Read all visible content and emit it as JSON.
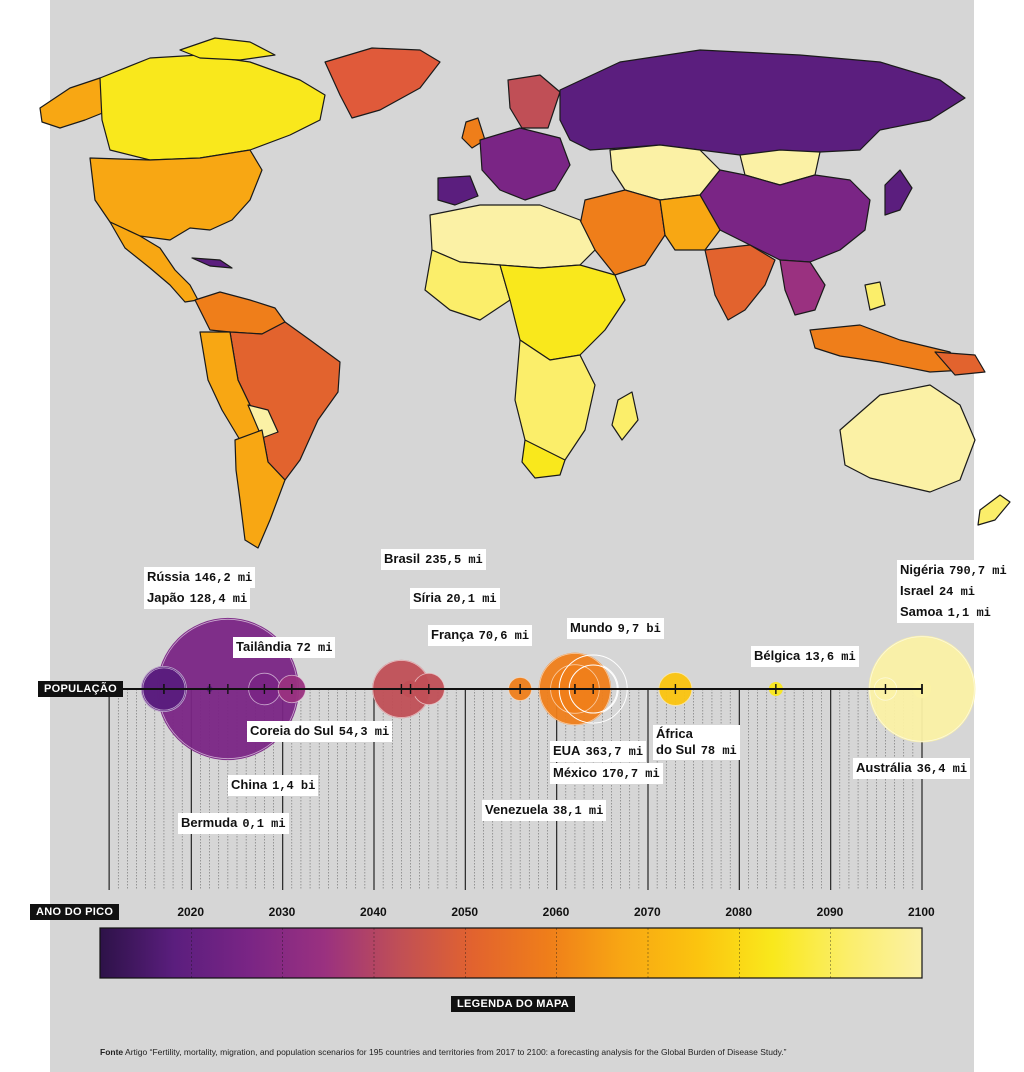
{
  "axis": {
    "population_label": "POPULAÇÃO",
    "peak_year_label": "ANO DO PICO",
    "legend_label": "LEGENDA DO MAPA",
    "year_min": 2017,
    "year_max": 2100,
    "year_ticks": [
      "2020",
      "2030",
      "2040",
      "2050",
      "2060",
      "2070",
      "2080",
      "2090",
      "2100"
    ]
  },
  "colors": {
    "scale": [
      "#2d1248",
      "#5b1e7e",
      "#7a2585",
      "#9a3180",
      "#c04f56",
      "#e2632e",
      "#ef7e1a",
      "#f8a713",
      "#fbc40f",
      "#f9e81c",
      "#fbee6a",
      "#fbf1a5"
    ],
    "background": "#d6d6d6",
    "axis": "#111111"
  },
  "countries": [
    {
      "name": "Rússia",
      "value": "146,2 mi",
      "year": 2017
    },
    {
      "name": "Japão",
      "value": "128,4 mi",
      "year": 2017
    },
    {
      "name": "Bermuda",
      "value": "0,1 mi",
      "year": 2022
    },
    {
      "name": "China",
      "value": "1,4 bi",
      "year": 2024
    },
    {
      "name": "Tailândia",
      "value": "72 mi",
      "year": 2028
    },
    {
      "name": "Coreia do Sul",
      "value": "54,3 mi",
      "year": 2031
    },
    {
      "name": "Brasil",
      "value": "235,5 mi",
      "year": 2043
    },
    {
      "name": "Síria",
      "value": "20,1 mi",
      "year": 2044
    },
    {
      "name": "França",
      "value": "70,6 mi",
      "year": 2046
    },
    {
      "name": "Venezuela",
      "value": "38,1 mi",
      "year": 2056
    },
    {
      "name": "EUA",
      "value": "363,7 mi",
      "year": 2062
    },
    {
      "name": "México",
      "value": "170,7 mi",
      "year": 2062
    },
    {
      "name": "Mundo",
      "value": "9,7 bi",
      "year": 2064
    },
    {
      "name": "África do Sul",
      "value": "78 mi",
      "year": 2073
    },
    {
      "name": "Bélgica",
      "value": "13,6 mi",
      "year": 2084
    },
    {
      "name": "Austrália",
      "value": "36,4 mi",
      "year": 2096
    },
    {
      "name": "Nigéria",
      "value": "790,7 mi",
      "year": 2100
    },
    {
      "name": "Israel",
      "value": "24 mi",
      "year": 2100
    },
    {
      "name": "Samoa",
      "value": "1,1 mi",
      "year": 2100
    }
  ],
  "labels": {
    "russia": {
      "name": "Rússia",
      "value": "146,2 mi"
    },
    "japan": {
      "name": "Japão",
      "value": "128,4 mi"
    },
    "thailand": {
      "name": "Tailândia",
      "value": "72 mi"
    },
    "skorea": {
      "name": "Coreia do Sul",
      "value": "54,3 mi"
    },
    "china": {
      "name": "China",
      "value": "1,4 bi"
    },
    "bermuda": {
      "name": "Bermuda",
      "value": "0,1 mi"
    },
    "brazil": {
      "name": "Brasil",
      "value": "235,5 mi"
    },
    "syria": {
      "name": "Síria",
      "value": "20,1 mi"
    },
    "france": {
      "name": "França",
      "value": "70,6 mi"
    },
    "world": {
      "name": "Mundo",
      "value": "9,7 bi"
    },
    "usa": {
      "name": "EUA",
      "value": "363,7 mi"
    },
    "mexico": {
      "name": "México",
      "value": "170,7 mi"
    },
    "venezuela": {
      "name": "Venezuela",
      "value": "38,1 mi"
    },
    "safrica": {
      "name1": "África",
      "name2": "do Sul",
      "value": "78 mi"
    },
    "belgium": {
      "name": "Bélgica",
      "value": "13,6 mi"
    },
    "australia": {
      "name": "Austrália",
      "value": "36,4 mi"
    },
    "nigeria": {
      "name": "Nigéria",
      "value": "790,7 mi"
    },
    "israel": {
      "name": "Israel",
      "value": "24 mi"
    },
    "samoa": {
      "name": "Samoa",
      "value": "1,1 mi"
    }
  },
  "source": {
    "label": "Fonte",
    "text": "Artigo “Fertility, mortality, migration, and population scenarios for 195 countries and territories from 2017 to 2100: a forecasting analysis for the Global Burden of Disease Study.”"
  }
}
